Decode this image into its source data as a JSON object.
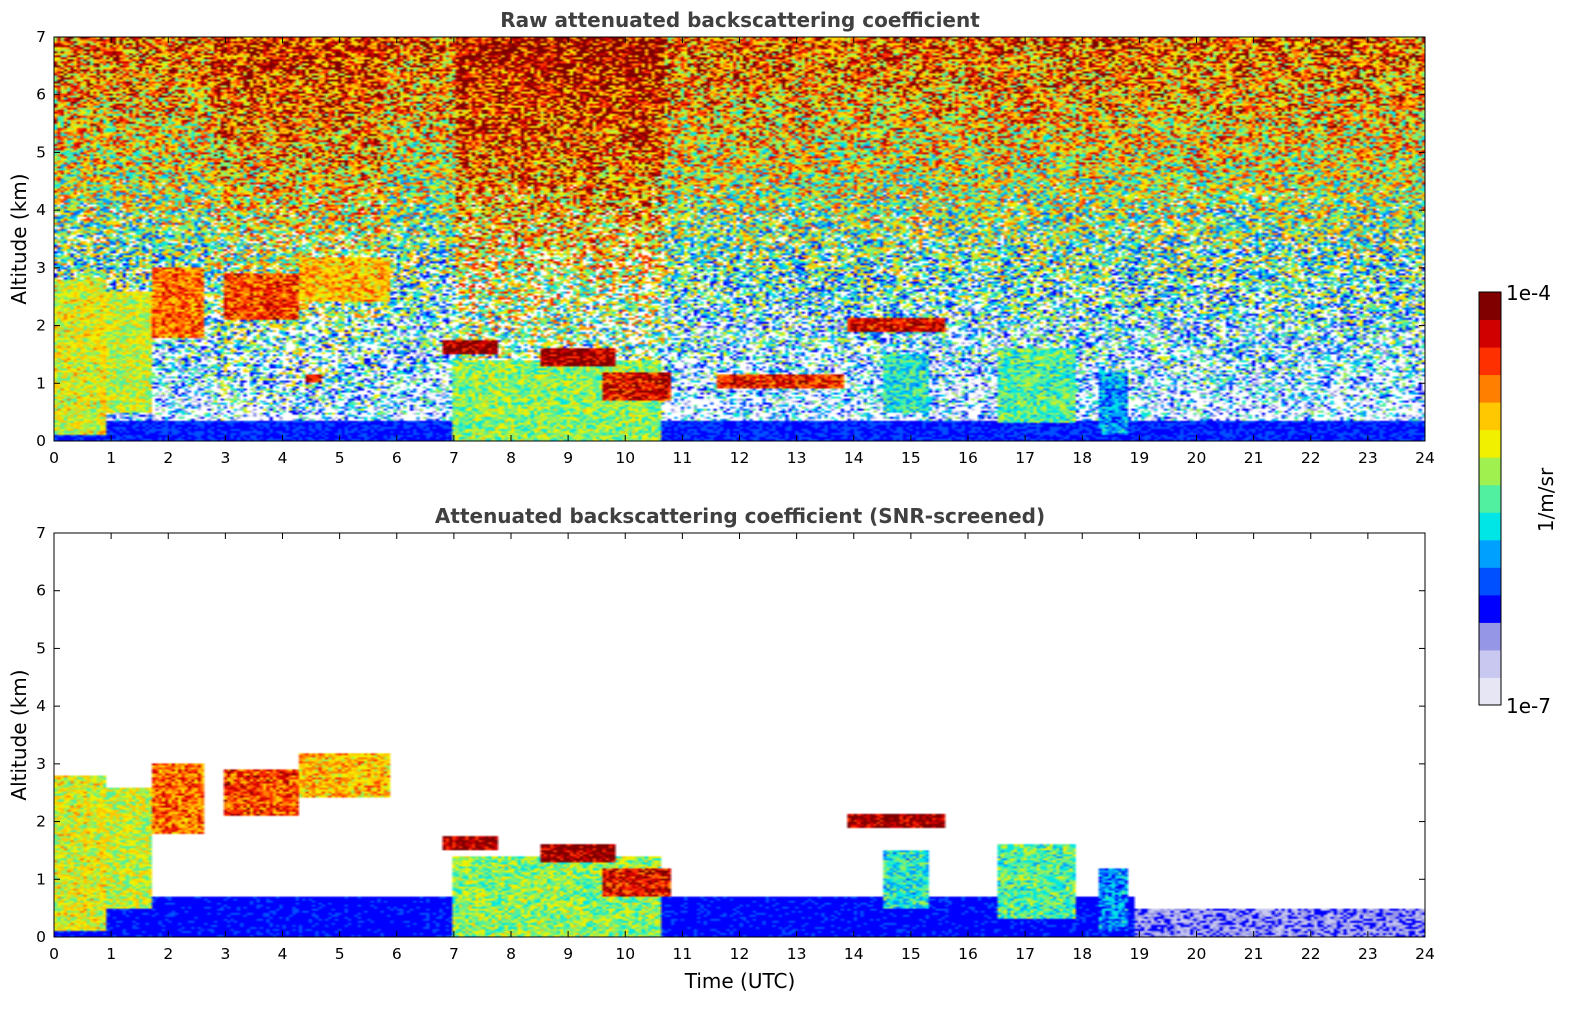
{
  "chart_data": [
    {
      "type": "heatmap",
      "title": "Raw attenuated backscattering coefficient",
      "xlabel": "",
      "ylabel": "Altitude (km)",
      "xlim": [
        0,
        24
      ],
      "ylim": [
        0,
        7
      ],
      "xticks": [
        "0",
        "1",
        "2",
        "3",
        "4",
        "5",
        "6",
        "7",
        "8",
        "9",
        "10",
        "11",
        "12",
        "13",
        "14",
        "15",
        "16",
        "17",
        "18",
        "19",
        "20",
        "21",
        "22",
        "23",
        "24"
      ],
      "yticks": [
        "0",
        "1",
        "2",
        "3",
        "4",
        "5",
        "6",
        "7"
      ],
      "background": "noisy",
      "features": [
        {
          "t0": 0.0,
          "t1": 0.9,
          "z0": 0.1,
          "z1": 2.8,
          "level": 0.62
        },
        {
          "t0": 0.8,
          "t1": 1.7,
          "z0": 0.5,
          "z1": 2.6,
          "level": 0.6
        },
        {
          "t0": 1.7,
          "t1": 2.6,
          "z0": 1.8,
          "z1": 3.0,
          "level": 0.78
        },
        {
          "t0": 3.0,
          "t1": 4.3,
          "z0": 2.1,
          "z1": 2.9,
          "level": 0.82
        },
        {
          "t0": 4.3,
          "t1": 5.9,
          "z0": 2.4,
          "z1": 3.2,
          "level": 0.7
        },
        {
          "t0": 4.4,
          "t1": 4.7,
          "z0": 1.0,
          "z1": 1.15,
          "level": 0.9
        },
        {
          "t0": 7.0,
          "t1": 10.6,
          "z0": 0.0,
          "z1": 1.4,
          "level": 0.55
        },
        {
          "t0": 6.8,
          "t1": 7.8,
          "z0": 1.5,
          "z1": 1.75,
          "level": 0.95
        },
        {
          "t0": 8.5,
          "t1": 9.8,
          "z0": 1.3,
          "z1": 1.6,
          "level": 0.95
        },
        {
          "t0": 9.6,
          "t1": 10.8,
          "z0": 0.7,
          "z1": 1.2,
          "level": 0.88
        },
        {
          "t0": 11.6,
          "t1": 13.8,
          "z0": 0.9,
          "z1": 1.15,
          "level": 0.85
        },
        {
          "t0": 13.9,
          "t1": 15.6,
          "z0": 1.9,
          "z1": 2.15,
          "level": 0.9
        },
        {
          "t0": 14.5,
          "t1": 15.3,
          "z0": 0.5,
          "z1": 1.5,
          "level": 0.45
        },
        {
          "t0": 16.5,
          "t1": 17.9,
          "z0": 0.3,
          "z1": 1.6,
          "level": 0.5
        },
        {
          "t0": 18.3,
          "t1": 18.8,
          "z0": 0.1,
          "z1": 1.2,
          "level": 0.35
        }
      ]
    },
    {
      "type": "heatmap",
      "title": "Attenuated backscattering coefficient (SNR-screened)",
      "xlabel": "Time (UTC)",
      "ylabel": "Altitude (km)",
      "xlim": [
        0,
        24
      ],
      "ylim": [
        0,
        7
      ],
      "xticks": [
        "0",
        "1",
        "2",
        "3",
        "4",
        "5",
        "6",
        "7",
        "8",
        "9",
        "10",
        "11",
        "12",
        "13",
        "14",
        "15",
        "16",
        "17",
        "18",
        "19",
        "20",
        "21",
        "22",
        "23",
        "24"
      ],
      "yticks": [
        "0",
        "1",
        "2",
        "3",
        "4",
        "5",
        "6",
        "7"
      ],
      "background": "screened",
      "features": [
        {
          "t0": 0.0,
          "t1": 0.9,
          "z0": 0.1,
          "z1": 2.8,
          "level": 0.62
        },
        {
          "t0": 0.8,
          "t1": 1.7,
          "z0": 0.5,
          "z1": 2.6,
          "level": 0.6
        },
        {
          "t0": 1.7,
          "t1": 2.6,
          "z0": 1.8,
          "z1": 3.0,
          "level": 0.78
        },
        {
          "t0": 3.0,
          "t1": 4.3,
          "z0": 2.1,
          "z1": 2.9,
          "level": 0.82
        },
        {
          "t0": 4.3,
          "t1": 5.9,
          "z0": 2.4,
          "z1": 3.2,
          "level": 0.7
        },
        {
          "t0": 7.0,
          "t1": 10.6,
          "z0": 0.0,
          "z1": 1.4,
          "level": 0.55
        },
        {
          "t0": 6.8,
          "t1": 7.8,
          "z0": 1.5,
          "z1": 1.75,
          "level": 0.95
        },
        {
          "t0": 8.5,
          "t1": 9.8,
          "z0": 1.3,
          "z1": 1.6,
          "level": 0.95
        },
        {
          "t0": 9.6,
          "t1": 10.8,
          "z0": 0.7,
          "z1": 1.2,
          "level": 0.88
        },
        {
          "t0": 13.9,
          "t1": 15.6,
          "z0": 1.9,
          "z1": 2.15,
          "level": 0.95
        },
        {
          "t0": 14.5,
          "t1": 15.3,
          "z0": 0.5,
          "z1": 1.5,
          "level": 0.45
        },
        {
          "t0": 16.5,
          "t1": 17.9,
          "z0": 0.3,
          "z1": 1.6,
          "level": 0.5
        },
        {
          "t0": 18.3,
          "t1": 18.8,
          "z0": 0.1,
          "z1": 1.2,
          "level": 0.35
        }
      ]
    }
  ],
  "colorbar": {
    "label": "1/m/sr",
    "max_label": "1e-4",
    "min_label": "1e-7",
    "colors": [
      "#e6e6f5",
      "#c8c8f0",
      "#9696e6",
      "#0000ff",
      "#0050ff",
      "#00a0ff",
      "#00e6e6",
      "#50f0a0",
      "#a0f050",
      "#f0f000",
      "#ffc800",
      "#ff8000",
      "#ff3000",
      "#d00000",
      "#800000"
    ]
  }
}
